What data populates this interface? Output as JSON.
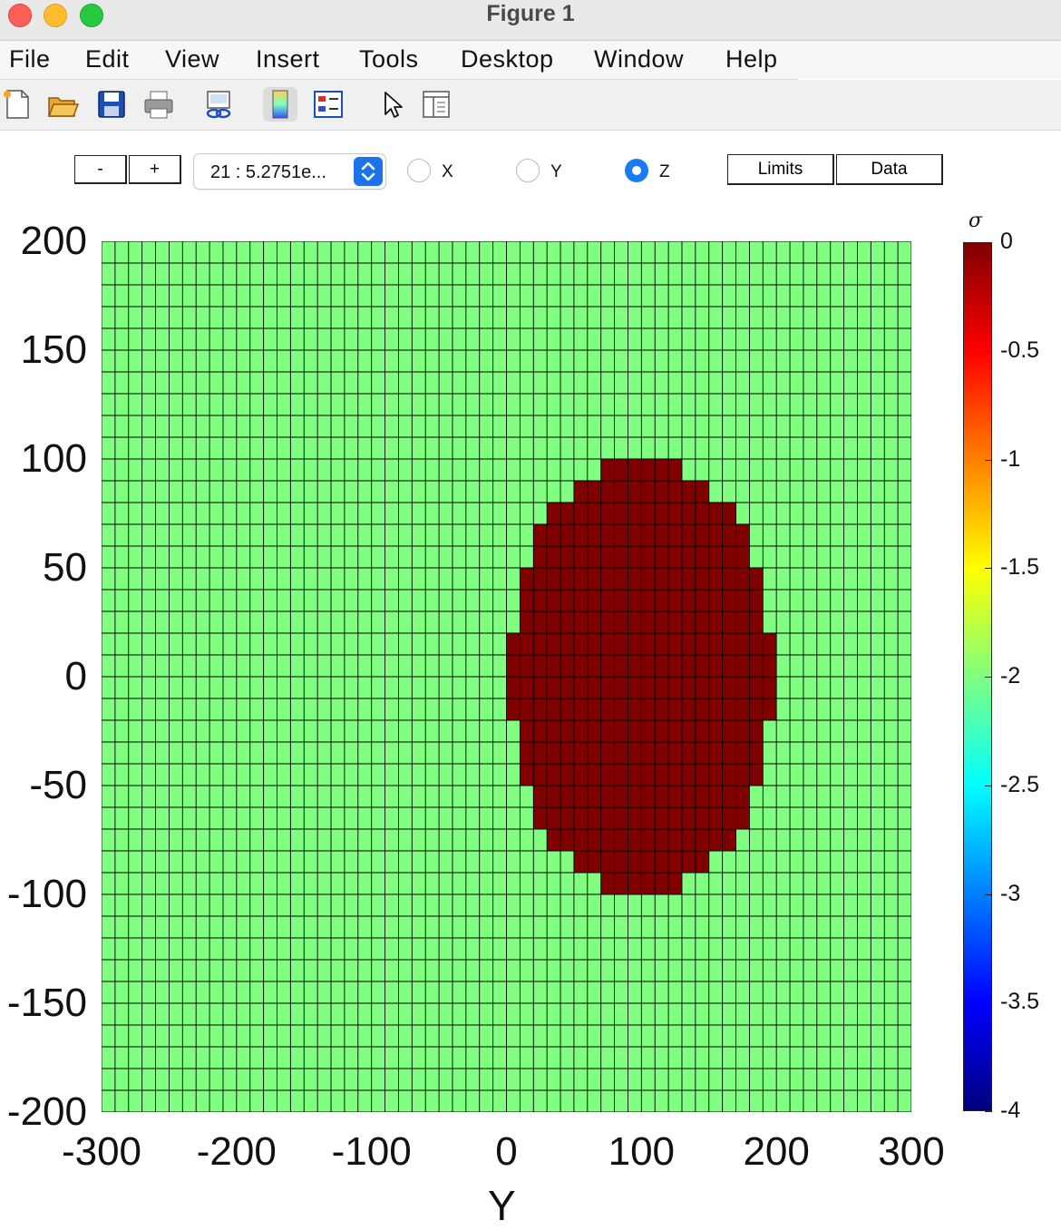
{
  "window": {
    "title": "Figure 1"
  },
  "menu": [
    "File",
    "Edit",
    "View",
    "Insert",
    "Tools",
    "Desktop",
    "Window",
    "Help"
  ],
  "toolbar": {
    "icons": [
      "new-figure-icon",
      "open-file-icon",
      "save-icon",
      "print-icon",
      "link-plot-icon",
      "colorbar-icon",
      "legend-icon",
      "pointer-icon",
      "property-inspector-icon"
    ]
  },
  "controls": {
    "minus_label": "-",
    "plus_label": "+",
    "slice_value": "21 : 5.2751e...",
    "radios": [
      {
        "label": "X",
        "selected": false
      },
      {
        "label": "Y",
        "selected": false
      },
      {
        "label": "Z",
        "selected": true
      }
    ],
    "limits_label": "Limits",
    "data_label": "Data"
  },
  "chart_data": {
    "type": "heatmap",
    "title": "",
    "xlabel": "Y",
    "ylabel": "",
    "xlim": [
      -300,
      300
    ],
    "ylim": [
      -200,
      200
    ],
    "x_ticks": [
      "-300",
      "-200",
      "-100",
      "0",
      "100",
      "200",
      "300"
    ],
    "y_ticks": [
      "200",
      "150",
      "100",
      "50",
      "0",
      "-50",
      "-100",
      "-150",
      "-200"
    ],
    "grid": {
      "columns": 60,
      "rows": 40,
      "cell_width": 10,
      "cell_height": 10,
      "show_edges": true
    },
    "background_value": -2,
    "anomaly_value": 0,
    "anomaly_rows": [
      {
        "y": [
          90,
          100
        ],
        "x": [
          70,
          130
        ]
      },
      {
        "y": [
          80,
          90
        ],
        "x": [
          50,
          150
        ]
      },
      {
        "y": [
          70,
          80
        ],
        "x": [
          30,
          170
        ]
      },
      {
        "y": [
          60,
          70
        ],
        "x": [
          20,
          180
        ]
      },
      {
        "y": [
          50,
          60
        ],
        "x": [
          20,
          180
        ]
      },
      {
        "y": [
          40,
          50
        ],
        "x": [
          10,
          190
        ]
      },
      {
        "y": [
          30,
          40
        ],
        "x": [
          10,
          190
        ]
      },
      {
        "y": [
          20,
          30
        ],
        "x": [
          10,
          190
        ]
      },
      {
        "y": [
          10,
          20
        ],
        "x": [
          0,
          200
        ]
      },
      {
        "y": [
          0,
          10
        ],
        "x": [
          0,
          200
        ]
      },
      {
        "y": [
          -10,
          0
        ],
        "x": [
          0,
          200
        ]
      },
      {
        "y": [
          -20,
          -10
        ],
        "x": [
          0,
          200
        ]
      },
      {
        "y": [
          -30,
          -20
        ],
        "x": [
          10,
          190
        ]
      },
      {
        "y": [
          -40,
          -30
        ],
        "x": [
          10,
          190
        ]
      },
      {
        "y": [
          -50,
          -40
        ],
        "x": [
          10,
          190
        ]
      },
      {
        "y": [
          -60,
          -50
        ],
        "x": [
          20,
          180
        ]
      },
      {
        "y": [
          -70,
          -60
        ],
        "x": [
          20,
          180
        ]
      },
      {
        "y": [
          -80,
          -70
        ],
        "x": [
          30,
          170
        ]
      },
      {
        "y": [
          -90,
          -80
        ],
        "x": [
          50,
          150
        ]
      },
      {
        "y": [
          -100,
          -90
        ],
        "x": [
          70,
          130
        ]
      }
    ],
    "colors": {
      "background": "#80ff80",
      "anomaly": "#800000",
      "edge": "#000000"
    },
    "colorbar": {
      "title": "σ",
      "limits": [
        -4,
        0
      ],
      "ticks": [
        "0",
        "-0.5",
        "-1",
        "-1.5",
        "-2",
        "-2.5",
        "-3",
        "-3.5",
        "-4"
      ],
      "colormap": "jet"
    }
  }
}
